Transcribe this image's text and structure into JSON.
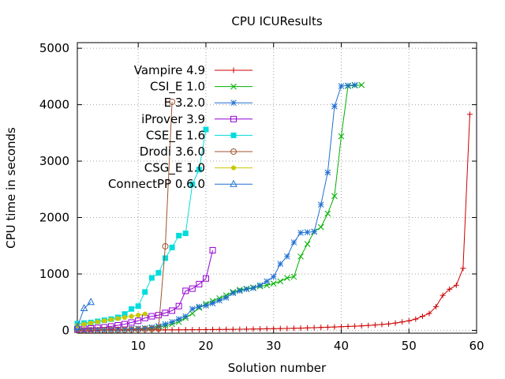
{
  "chart_data": {
    "type": "line",
    "title": "CPU ICUResults",
    "xlabel": "Solution number",
    "ylabel": "CPU time in seconds",
    "xlim": [
      1,
      60
    ],
    "ylim": [
      -50,
      5100
    ],
    "xticks": [
      10,
      20,
      30,
      40,
      50,
      60
    ],
    "yticks": [
      0,
      1000,
      2000,
      3000,
      4000,
      5000
    ],
    "grid": true,
    "legend_position": "top-left",
    "series": [
      {
        "name": "Vampire 4.9",
        "color": "#cc0000",
        "marker": "plus",
        "x": [
          1,
          2,
          3,
          4,
          5,
          6,
          7,
          8,
          9,
          10,
          11,
          12,
          13,
          14,
          15,
          16,
          17,
          18,
          19,
          20,
          21,
          22,
          23,
          24,
          25,
          26,
          27,
          28,
          29,
          30,
          31,
          32,
          33,
          34,
          35,
          36,
          37,
          38,
          39,
          40,
          41,
          42,
          43,
          44,
          45,
          46,
          47,
          48,
          49,
          50,
          51,
          52,
          53,
          54,
          55,
          56,
          57,
          58,
          59
        ],
        "y": [
          2,
          2,
          3,
          3,
          4,
          4,
          5,
          5,
          6,
          6,
          7,
          8,
          8,
          9,
          10,
          10,
          11,
          12,
          13,
          14,
          15,
          16,
          17,
          18,
          20,
          22,
          24,
          26,
          28,
          30,
          32,
          34,
          37,
          40,
          44,
          48,
          52,
          56,
          60,
          65,
          70,
          75,
          80,
          88,
          95,
          105,
          115,
          130,
          150,
          170,
          200,
          250,
          300,
          420,
          620,
          730,
          800,
          1100,
          3830
        ]
      },
      {
        "name": "CSI_E 1.0",
        "color": "#00b000",
        "marker": "x",
        "x": [
          1,
          2,
          3,
          4,
          5,
          6,
          7,
          8,
          9,
          10,
          11,
          12,
          13,
          14,
          15,
          16,
          17,
          18,
          19,
          20,
          21,
          22,
          23,
          24,
          25,
          26,
          27,
          28,
          29,
          30,
          31,
          32,
          33,
          34,
          35,
          36,
          37,
          38,
          39,
          40,
          41,
          42,
          43
        ],
        "y": [
          5,
          6,
          7,
          8,
          10,
          12,
          15,
          18,
          22,
          28,
          35,
          45,
          60,
          80,
          110,
          150,
          220,
          300,
          400,
          470,
          520,
          570,
          620,
          680,
          720,
          740,
          760,
          780,
          800,
          830,
          870,
          930,
          950,
          1310,
          1530,
          1750,
          1830,
          2070,
          2380,
          3440,
          4330,
          4340,
          4350
        ]
      },
      {
        "name": "E 3.2.0",
        "color": "#1f6fd0",
        "marker": "star",
        "x": [
          1,
          2,
          3,
          4,
          5,
          6,
          7,
          8,
          9,
          10,
          11,
          12,
          13,
          14,
          15,
          16,
          17,
          18,
          19,
          20,
          21,
          22,
          23,
          24,
          25,
          26,
          27,
          28,
          29,
          30,
          31,
          32,
          33,
          34,
          35,
          36,
          37,
          38,
          39,
          40,
          41,
          42
        ],
        "y": [
          5,
          6,
          7,
          8,
          10,
          12,
          15,
          20,
          25,
          30,
          40,
          55,
          75,
          110,
          150,
          200,
          250,
          380,
          420,
          440,
          480,
          530,
          580,
          660,
          700,
          730,
          750,
          800,
          870,
          950,
          1180,
          1310,
          1560,
          1730,
          1740,
          1750,
          2230,
          2800,
          3970,
          4330,
          4340,
          4350
        ]
      },
      {
        "name": "iProver 3.9",
        "color": "#9400d3",
        "marker": "square",
        "x": [
          1,
          2,
          3,
          4,
          5,
          6,
          7,
          8,
          9,
          10,
          11,
          12,
          13,
          14,
          15,
          16,
          17,
          18,
          19,
          20,
          21
        ],
        "y": [
          20,
          25,
          35,
          45,
          55,
          70,
          90,
          110,
          140,
          170,
          220,
          250,
          270,
          310,
          350,
          430,
          700,
          740,
          820,
          920,
          1420
        ]
      },
      {
        "name": "CSE_E 1.6",
        "color": "#00dcdc",
        "marker": "filled-square",
        "x": [
          1,
          2,
          3,
          4,
          5,
          6,
          7,
          8,
          9,
          10,
          11,
          12,
          13,
          14,
          15,
          16,
          17,
          18,
          19,
          20
        ],
        "y": [
          120,
          130,
          140,
          160,
          180,
          200,
          230,
          290,
          380,
          430,
          680,
          930,
          1020,
          1280,
          1470,
          1680,
          1720,
          2590,
          2850,
          3560
        ]
      },
      {
        "name": "Drodi 3.6.0",
        "color": "#a0522d",
        "marker": "circle",
        "x": [
          1,
          2,
          3,
          4,
          5,
          6,
          7,
          8,
          9,
          10,
          11,
          12,
          13,
          14,
          15
        ],
        "y": [
          2,
          3,
          4,
          5,
          6,
          8,
          10,
          12,
          15,
          18,
          22,
          25,
          30,
          1490,
          4050
        ]
      },
      {
        "name": "CSG_E 1.0",
        "color": "#c8c800",
        "marker": "filled-pentagon",
        "x": [
          1,
          2,
          3,
          4,
          5,
          6,
          7,
          8,
          9,
          10,
          11
        ],
        "y": [
          90,
          110,
          130,
          150,
          170,
          190,
          210,
          230,
          250,
          270,
          290
        ]
      },
      {
        "name": "ConnectPP 0.6.0",
        "color": "#1f6fd0",
        "marker": "triangle",
        "x": [
          1,
          2,
          3
        ],
        "y": [
          60,
          390,
          500
        ]
      }
    ]
  }
}
